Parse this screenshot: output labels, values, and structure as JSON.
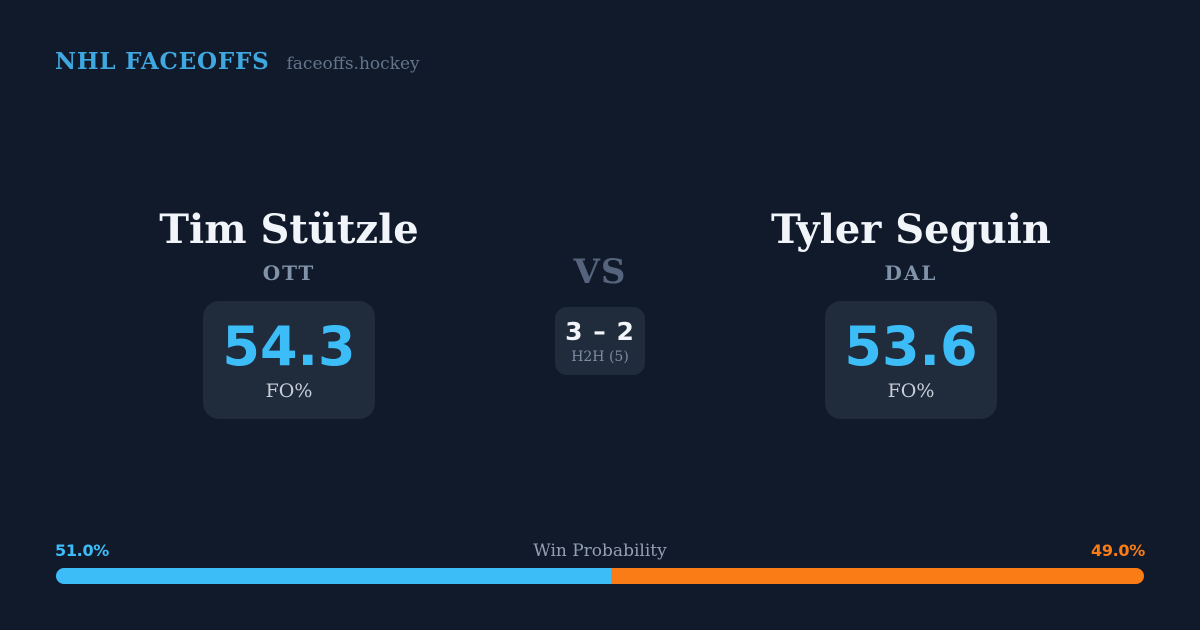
{
  "brand": {
    "title": "NHL FACEOFFS",
    "domain": "faceoffs.hockey"
  },
  "matchup": {
    "player_left": {
      "name": "Tim Stützle",
      "team": "OTT",
      "stat_value": "54.3",
      "stat_label": "FO%"
    },
    "player_right": {
      "name": "Tyler Seguin",
      "team": "DAL",
      "stat_value": "53.6",
      "stat_label": "FO%"
    },
    "vs_label": "VS",
    "h2h": {
      "score": "3 – 2",
      "label": "H2H (5)"
    }
  },
  "win_probability": {
    "label": "Win Probability",
    "left_pct_label": "51.0%",
    "right_pct_label": "49.0%",
    "left_value": 51.0,
    "right_value": 49.0
  },
  "chart_data": {
    "type": "bar",
    "title": "Win Probability",
    "categories": [
      "Tim Stützle (OTT)",
      "Tyler Seguin (DAL)"
    ],
    "series": [
      {
        "name": "Win Probability %",
        "values": [
          51.0,
          49.0
        ]
      },
      {
        "name": "Faceoff Win %",
        "values": [
          54.3,
          53.6
        ]
      }
    ],
    "annotations": [
      "Head-to-head record 3 – 2 across 5 matchups"
    ],
    "legend_position": "none",
    "colors": {
      "left_player": "#3cbdf8",
      "right_player": "#f97c16"
    }
  },
  "colors": {
    "background": "#111a2b",
    "card": "#202b3b",
    "accent_blue": "#3cbdf8",
    "header_blue": "#3fa8e0",
    "accent_orange": "#f97c16"
  }
}
